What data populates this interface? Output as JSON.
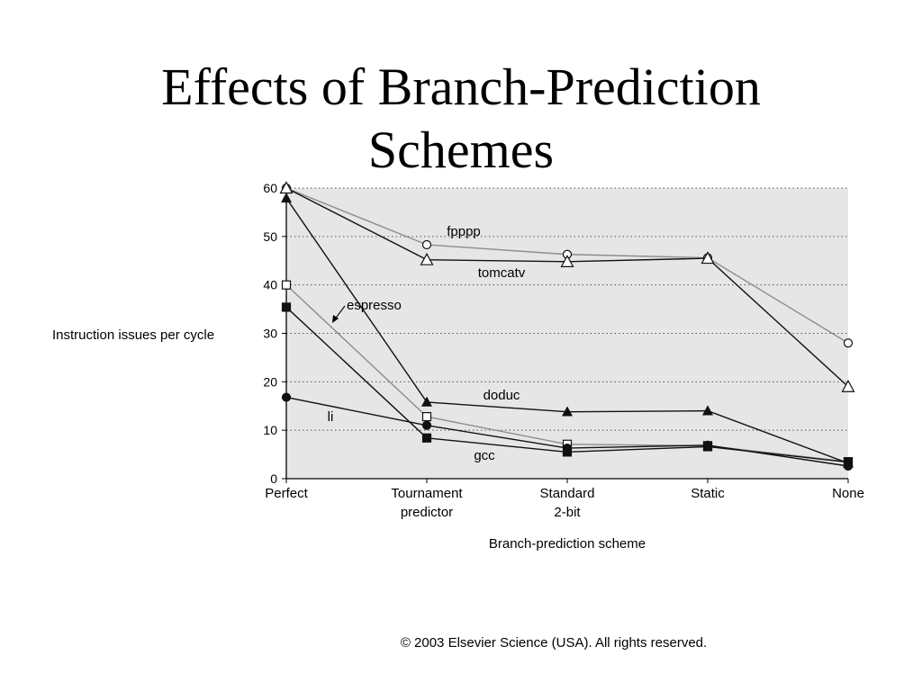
{
  "slide": {
    "title_line1": "Effects of Branch-Prediction",
    "title_line2": "Schemes",
    "copyright": "© 2003 Elsevier Science (USA). All rights reserved."
  },
  "chart_data": {
    "type": "line",
    "title": "",
    "xlabel": "Branch-prediction scheme",
    "ylabel": "Instruction issues per cycle",
    "ylim": [
      0,
      60
    ],
    "yticks": [
      0,
      10,
      20,
      30,
      40,
      50,
      60
    ],
    "categories": [
      "Perfect",
      "Tournament predictor",
      "Standard 2-bit",
      "Static",
      "None"
    ],
    "category_labels": [
      [
        "Perfect"
      ],
      [
        "Tournament",
        "predictor"
      ],
      [
        "Standard",
        "2-bit"
      ],
      [
        "Static"
      ],
      [
        "None"
      ]
    ],
    "grid": true,
    "background": "#e6e6e6",
    "series": [
      {
        "name": "fpppp",
        "marker": "circle-open",
        "color": "#8c8c8c",
        "values": [
          60,
          48.3,
          46.3,
          45.6,
          28.0
        ]
      },
      {
        "name": "tomcatv",
        "marker": "triangle-open",
        "color": "#111111",
        "values": [
          60,
          45.2,
          44.8,
          45.5,
          19.0
        ]
      },
      {
        "name": "espresso",
        "marker": "square-open",
        "color": "#8c8c8c",
        "values": [
          40,
          12.8,
          7.1,
          6.8,
          3.5
        ]
      },
      {
        "name": "doduc",
        "marker": "triangle",
        "color": "#111111",
        "values": [
          57.9,
          15.8,
          13.8,
          14.0,
          3.2
        ]
      },
      {
        "name": "li",
        "marker": "circle",
        "color": "#111111",
        "values": [
          16.8,
          11.0,
          6.3,
          6.9,
          2.6
        ]
      },
      {
        "name": "gcc",
        "marker": "square",
        "color": "#111111",
        "values": [
          35.4,
          8.4,
          5.5,
          6.6,
          3.4
        ]
      }
    ],
    "annotations": [
      "fpppp",
      "tomcatv",
      "espresso",
      "doduc",
      "li",
      "gcc"
    ]
  }
}
